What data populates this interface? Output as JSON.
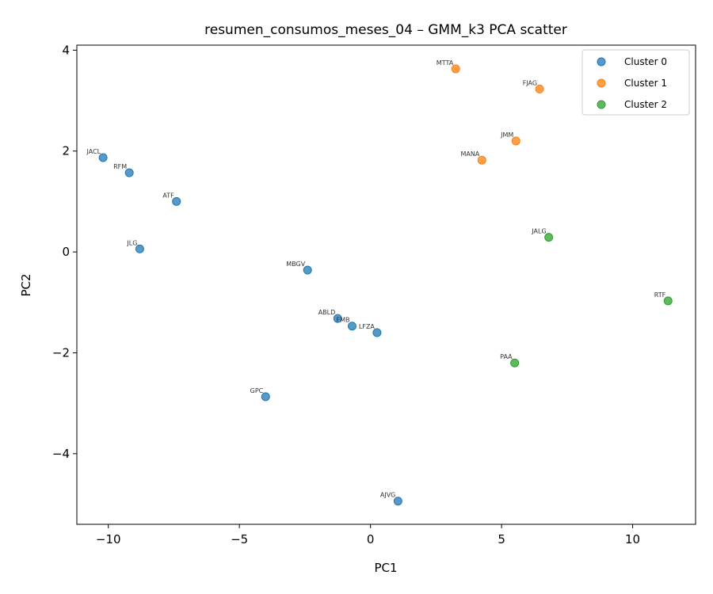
{
  "chart_data": {
    "type": "scatter",
    "title": "resumen_consumos_meses_04 – GMM_k3 PCA scatter",
    "xlabel": "PC1",
    "ylabel": "PC2",
    "xlim": [
      -11.2,
      12.4
    ],
    "ylim": [
      -5.4,
      4.1
    ],
    "xticks": [
      -10,
      -5,
      0,
      5,
      10
    ],
    "xtick_labels": [
      "−10",
      "−5",
      "0",
      "5",
      "10"
    ],
    "yticks": [
      -4,
      -2,
      0,
      2,
      4
    ],
    "ytick_labels": [
      "−4",
      "−2",
      "0",
      "2",
      "4"
    ],
    "grid": false,
    "legend_position": "top-right",
    "series": [
      {
        "name": "Cluster 0",
        "color": "#1f77b4",
        "points": [
          {
            "label": "JACL",
            "x": -10.2,
            "y": 1.87
          },
          {
            "label": "RFM",
            "x": -9.2,
            "y": 1.57
          },
          {
            "label": "ATF",
            "x": -7.4,
            "y": 1.0
          },
          {
            "label": "JLG",
            "x": -8.8,
            "y": 0.06
          },
          {
            "label": "MBGV",
            "x": -2.4,
            "y": -0.36
          },
          {
            "label": "ABLD",
            "x": -1.25,
            "y": -1.32
          },
          {
            "label": "FMB",
            "x": -0.7,
            "y": -1.47
          },
          {
            "label": "LFZA",
            "x": 0.25,
            "y": -1.6
          },
          {
            "label": "GPC",
            "x": -4.0,
            "y": -2.87
          },
          {
            "label": "AJVG",
            "x": 1.05,
            "y": -4.94
          }
        ]
      },
      {
        "name": "Cluster 1",
        "color": "#ff7f0e",
        "points": [
          {
            "label": "MTTA",
            "x": 3.25,
            "y": 3.63
          },
          {
            "label": "FJAG",
            "x": 6.45,
            "y": 3.23
          },
          {
            "label": "JMM",
            "x": 5.55,
            "y": 2.2
          },
          {
            "label": "MANA",
            "x": 4.25,
            "y": 1.82
          }
        ]
      },
      {
        "name": "Cluster 2",
        "color": "#2ca02c",
        "points": [
          {
            "label": "JALG",
            "x": 6.8,
            "y": 0.29
          },
          {
            "label": "RTF",
            "x": 11.35,
            "y": -0.97
          },
          {
            "label": "PAA",
            "x": 5.5,
            "y": -2.2
          }
        ]
      }
    ]
  }
}
